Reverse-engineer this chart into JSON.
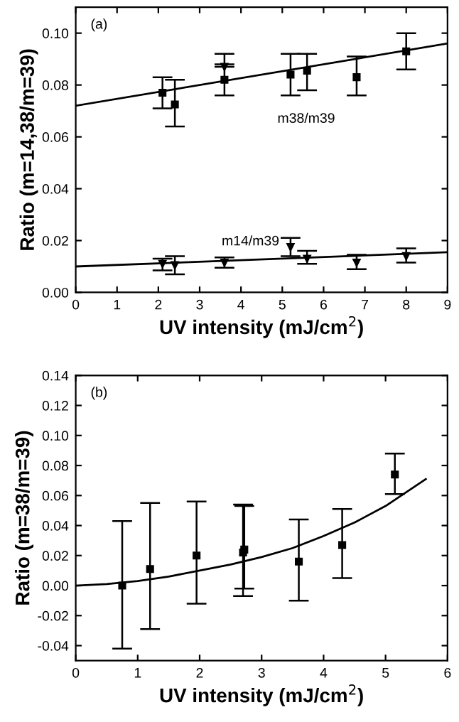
{
  "chart_data": [
    {
      "type": "scatter",
      "xlabel": "UV intensity (mJ/cm$^{2}$)",
      "ylabel": "Ratio (m=14,38/m=39)",
      "annotations": [
        "(a)",
        "m38/m39",
        "m14/m39"
      ],
      "xlim": [
        0,
        9
      ],
      "ylim": [
        0,
        0.11
      ],
      "xticks": [
        0,
        1,
        2,
        3,
        4,
        5,
        6,
        7,
        8,
        9
      ],
      "yticks": [
        {
          "value": 0,
          "label": "0.00"
        },
        {
          "value": 0.02,
          "label": "0.02"
        },
        {
          "value": 0.04,
          "label": "0.04"
        },
        {
          "value": 0.06,
          "label": "0.06"
        },
        {
          "value": 0.08,
          "label": "0.08"
        },
        {
          "value": 0.1,
          "label": "0.10"
        }
      ],
      "series": [
        {
          "marker": "square",
          "color": "#000000",
          "x": [
            2.1,
            2.4,
            3.6,
            5.2,
            5.6,
            6.8,
            8.0
          ],
          "values": [
            0.077,
            0.0725,
            0.082,
            0.084,
            0.0855,
            0.083,
            0.093
          ],
          "errors": [
            [
              0.071,
              0.083
            ],
            [
              0.064,
              0.082
            ],
            [
              0.076,
              0.088
            ],
            [
              0.076,
              0.092
            ],
            [
              0.078,
              0.092
            ],
            [
              0.076,
              0.091
            ],
            [
              0.086,
              0.1
            ]
          ]
        },
        {
          "marker": "triangle",
          "color": "#000000",
          "x": [
            3.6
          ],
          "values": [
            0.087
          ],
          "errors": [
            [
              0.087,
              0.092
            ]
          ]
        },
        {
          "marker": "triangle",
          "color": "#000000",
          "x": [
            2.1,
            2.4,
            3.6,
            5.2,
            5.6,
            6.8,
            8.0
          ],
          "values": [
            0.011,
            0.0105,
            0.0115,
            0.0175,
            0.013,
            0.0115,
            0.014
          ],
          "errors": [
            [
              0.0085,
              0.013
            ],
            [
              0.007,
              0.014
            ],
            [
              0.0095,
              0.0135
            ],
            [
              0.014,
              0.021
            ],
            [
              0.011,
              0.016
            ],
            [
              0.009,
              0.0145
            ],
            [
              0.0115,
              0.017
            ]
          ]
        },
        {
          "type": "line",
          "marker": "none",
          "color": "#000000",
          "x": [
            0,
            9
          ],
          "values": [
            0.072,
            0.096
          ]
        },
        {
          "type": "line",
          "marker": "none",
          "color": "#000000",
          "x": [
            0,
            9
          ],
          "values": [
            0.01,
            0.0155
          ]
        }
      ]
    },
    {
      "type": "scatter",
      "xlabel": "UV intensity (mJ/cm$^{2}$)",
      "ylabel": "Ratio (m=38/m=39)",
      "annotations": [
        "(b)"
      ],
      "xlim": [
        0,
        6
      ],
      "ylim": [
        -0.05,
        0.14
      ],
      "xticks": [
        0,
        1,
        2,
        3,
        4,
        5,
        6
      ],
      "yticks": [
        {
          "value": -0.04,
          "label": "-0.04"
        },
        {
          "value": -0.02,
          "label": "-0.02"
        },
        {
          "value": 0,
          "label": "0.00"
        },
        {
          "value": 0.02,
          "label": "0.02"
        },
        {
          "value": 0.04,
          "label": "0.04"
        },
        {
          "value": 0.06,
          "label": "0.06"
        },
        {
          "value": 0.08,
          "label": "0.08"
        },
        {
          "value": 0.1,
          "label": "0.10"
        },
        {
          "value": 0.12,
          "label": "0.12"
        },
        {
          "value": 0.14,
          "label": "0.14"
        }
      ],
      "series": [
        {
          "marker": "square",
          "color": "#000000",
          "x": [
            0.75,
            1.2,
            1.95,
            2.7,
            2.72,
            3.6,
            4.3,
            5.15
          ],
          "values": [
            0.0,
            0.011,
            0.02,
            0.022,
            0.024,
            0.016,
            0.027,
            0.074
          ],
          "errors": [
            [
              -0.042,
              0.043
            ],
            [
              -0.029,
              0.055
            ],
            [
              -0.012,
              0.056
            ],
            [
              -0.007,
              0.054
            ],
            [
              -0.002,
              0.053
            ],
            [
              -0.01,
              0.044
            ],
            [
              0.005,
              0.051
            ],
            [
              0.061,
              0.088
            ]
          ]
        },
        {
          "type": "line",
          "marker": "none",
          "color": "#000000",
          "x": [
            0,
            0.5,
            1,
            1.5,
            2,
            2.5,
            3,
            3.5,
            4,
            4.5,
            5,
            5.65
          ],
          "values": [
            0,
            0.001,
            0.003,
            0.006,
            0.01,
            0.014,
            0.019,
            0.025,
            0.033,
            0.042,
            0.053,
            0.071
          ]
        }
      ]
    }
  ]
}
